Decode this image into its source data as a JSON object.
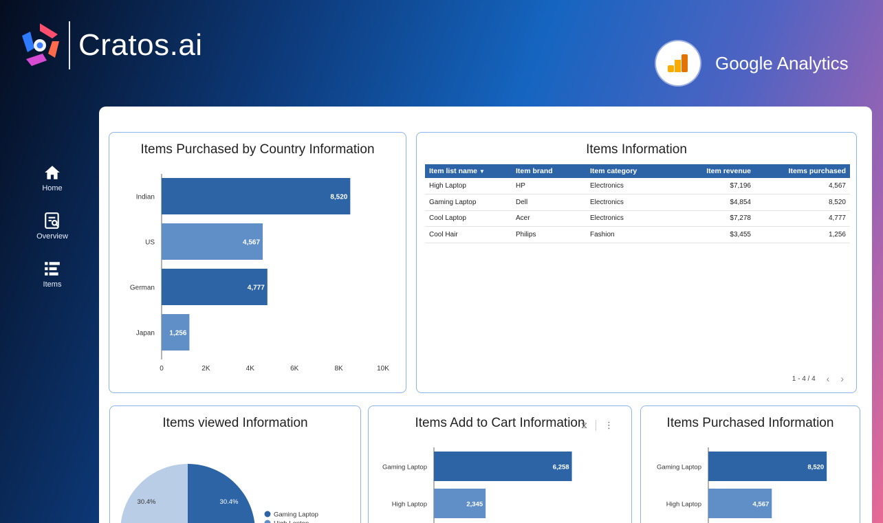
{
  "brand": {
    "name": "Cratos.ai"
  },
  "integration": {
    "name": "Google Analytics"
  },
  "sidebar": {
    "items": [
      {
        "label": "Home",
        "icon": "home-icon"
      },
      {
        "label": "Overview",
        "icon": "report-search-icon"
      },
      {
        "label": "Items",
        "icon": "list-icon"
      }
    ]
  },
  "colors": {
    "bar_dark": "#2c64a6",
    "bar_light": "#5f8fc6",
    "pie_light": "#b9cde6",
    "accent_border": "#8ab4f0"
  },
  "country_chart": {
    "title": "Items Purchased by Country Information",
    "chart_data": {
      "type": "bar",
      "orientation": "horizontal",
      "categories": [
        "Indian",
        "US",
        "German",
        "Japan"
      ],
      "values": [
        8520,
        4567,
        4777,
        1256
      ],
      "value_labels": [
        "8,520",
        "4,567",
        "4,777",
        "1,256"
      ],
      "xlim": [
        0,
        10000
      ],
      "ticks": [
        0,
        2000,
        4000,
        6000,
        8000,
        10000
      ],
      "tick_labels": [
        "0",
        "2K",
        "4K",
        "6K",
        "8K",
        "10K"
      ],
      "grid": false
    }
  },
  "items_table": {
    "title": "Items Information",
    "columns": [
      "Item list name",
      "Item brand",
      "Item category",
      "Item revenue",
      "Items purchased"
    ],
    "rows": [
      [
        "High Laptop",
        "HP",
        "Electronics",
        "$7,196",
        "4,567"
      ],
      [
        "Gaming Laptop",
        "Dell",
        "Electronics",
        "$4,854",
        "8,520"
      ],
      [
        "Cool Laptop",
        "Acer",
        "Electronics",
        "$7,278",
        "4,777"
      ],
      [
        "Cool Hair",
        "Philips",
        "Fashion",
        "$3,455",
        "1,256"
      ]
    ],
    "pagination": "1 - 4 / 4"
  },
  "viewed_chart": {
    "title": "Items viewed Information",
    "chart_data": {
      "type": "pie",
      "slices": [
        {
          "name": "Gaming Laptop",
          "value": 30.4,
          "label": "30.4%"
        },
        {
          "name": "High Laptop",
          "value": 30.4,
          "label": "30.4%"
        }
      ],
      "legend": [
        "Gaming Laptop",
        "High Laptop"
      ],
      "legend_position": "right"
    }
  },
  "cart_chart": {
    "title": "Items Add to Cart Information",
    "chart_data": {
      "type": "bar",
      "orientation": "horizontal",
      "categories": [
        "Gaming Laptop",
        "High Laptop"
      ],
      "values": [
        6258,
        2345
      ],
      "value_labels": [
        "6,258",
        "2,345"
      ]
    }
  },
  "purchased_chart": {
    "title": "Items Purchased Information",
    "chart_data": {
      "type": "bar",
      "orientation": "horizontal",
      "categories": [
        "Gaming Laptop",
        "High Laptop"
      ],
      "values": [
        8520,
        4567
      ],
      "value_labels": [
        "8,520",
        "4,567"
      ]
    }
  }
}
